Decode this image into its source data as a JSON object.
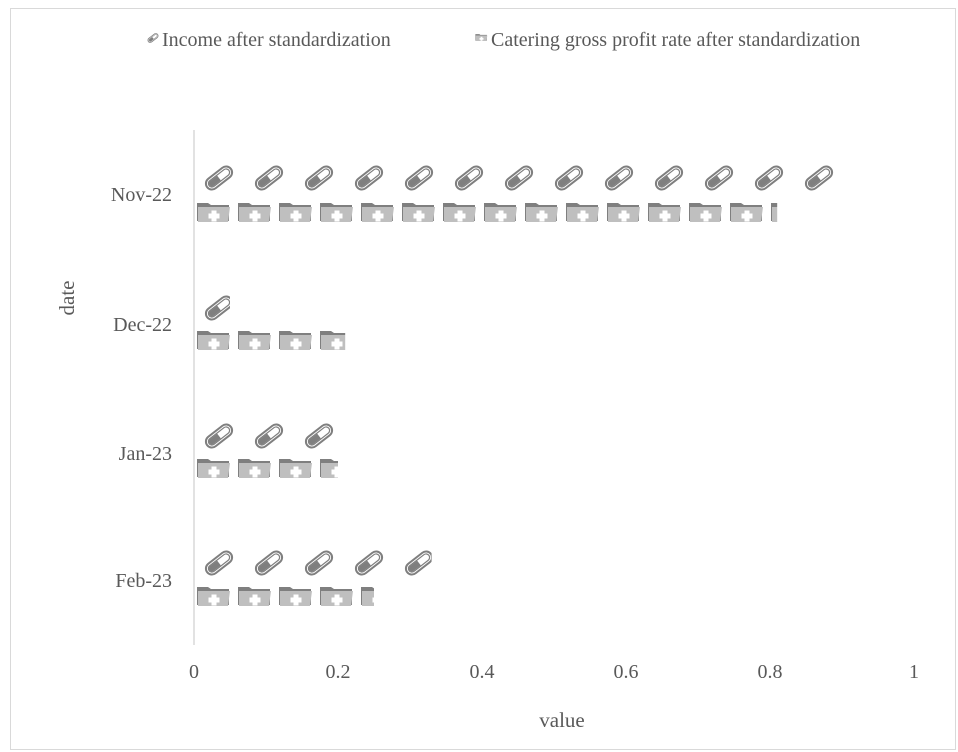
{
  "chart_data": {
    "type": "bar",
    "orientation": "horizontal",
    "title": "",
    "xlabel": "value",
    "ylabel": "date",
    "categories": [
      "Nov-22",
      "Dec-22",
      "Jan-23",
      "Feb-23"
    ],
    "series": [
      {
        "name": "Income after standardization",
        "icon": "capsule-pill-icon",
        "color": "#7f7f7f",
        "values": [
          0.89,
          0.05,
          0.2,
          0.33
        ]
      },
      {
        "name": "Catering gross profit rate after standardization",
        "icon": "medical-folder-icon",
        "color": "#a6a6a6",
        "values": [
          0.81,
          0.21,
          0.2,
          0.25
        ]
      }
    ],
    "xlim": [
      0,
      1
    ],
    "xticks": [
      "0",
      "0.2",
      "0.4",
      "0.6",
      "0.8",
      "1"
    ],
    "grid": false,
    "legend": "top"
  }
}
